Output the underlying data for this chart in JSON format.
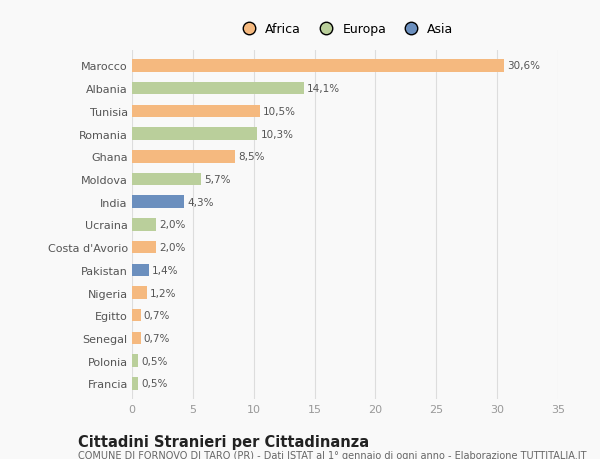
{
  "countries": [
    "Marocco",
    "Albania",
    "Tunisia",
    "Romania",
    "Ghana",
    "Moldova",
    "India",
    "Ucraina",
    "Costa d'Avorio",
    "Pakistan",
    "Nigeria",
    "Egitto",
    "Senegal",
    "Polonia",
    "Francia"
  ],
  "values": [
    30.6,
    14.1,
    10.5,
    10.3,
    8.5,
    5.7,
    4.3,
    2.0,
    2.0,
    1.4,
    1.2,
    0.7,
    0.7,
    0.5,
    0.5
  ],
  "labels": [
    "30,6%",
    "14,1%",
    "10,5%",
    "10,3%",
    "8,5%",
    "5,7%",
    "4,3%",
    "2,0%",
    "2,0%",
    "1,4%",
    "1,2%",
    "0,7%",
    "0,7%",
    "0,5%",
    "0,5%"
  ],
  "colors": [
    "#F5B97F",
    "#BACF9B",
    "#F5B97F",
    "#BACF9B",
    "#F5B97F",
    "#BACF9B",
    "#6B8FBE",
    "#BACF9B",
    "#F5B97F",
    "#6B8FBE",
    "#F5B97F",
    "#F5B97F",
    "#F5B97F",
    "#BACF9B",
    "#BACF9B"
  ],
  "continent_colors": {
    "Africa": "#F5B97F",
    "Europa": "#BACF9B",
    "Asia": "#6B8FBE"
  },
  "xlim": [
    0,
    35
  ],
  "xticks": [
    0,
    5,
    10,
    15,
    20,
    25,
    30,
    35
  ],
  "title": "Cittadini Stranieri per Cittadinanza",
  "subtitle": "COMUNE DI FORNOVO DI TARO (PR) - Dati ISTAT al 1° gennaio di ogni anno - Elaborazione TUTTITALIA.IT",
  "background_color": "#f9f9f9",
  "bar_height": 0.55,
  "grid_color": "#dddddd",
  "label_fontsize": 7.5,
  "ytick_fontsize": 8.0,
  "xtick_fontsize": 8.0,
  "title_fontsize": 10.5,
  "subtitle_fontsize": 7.0,
  "legend_fontsize": 9.0
}
